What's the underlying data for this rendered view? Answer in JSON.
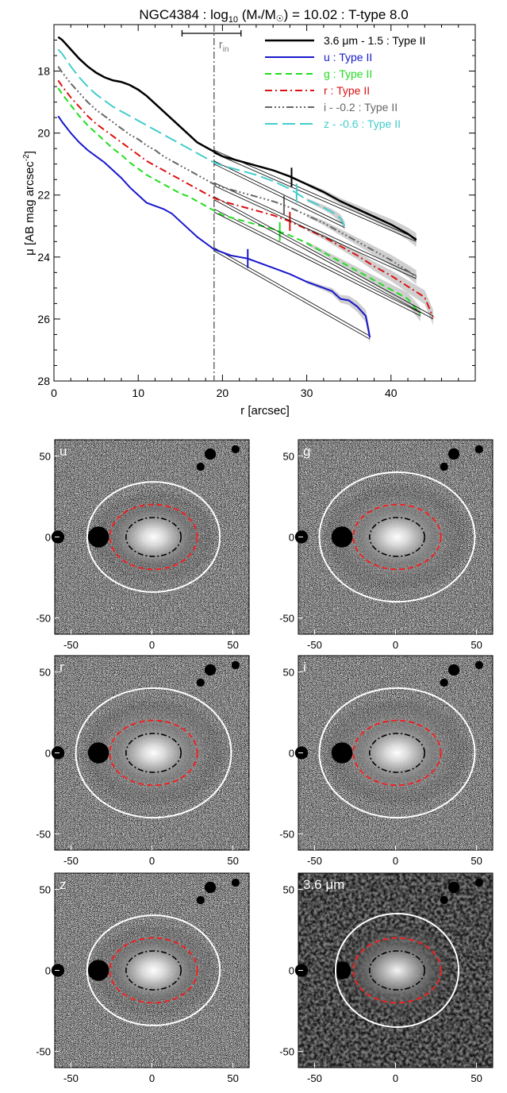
{
  "chart_data": [
    {
      "type": "line",
      "title": {
        "object": "NGC4384",
        "log_pre": "log",
        "log_sub": "10",
        "mass_open": " (M",
        "mass_star": "*",
        "mass_mid": "/M",
        "mass_sun": "☉",
        "mass_close": ")",
        "value": " = 10.02 : T-type 8.0"
      },
      "xlabel": "r [arcsec]",
      "ylabel": {
        "pre": "μ [AB mag arcsec",
        "sup": "-2",
        "post": "]"
      },
      "xlim": [
        0,
        50
      ],
      "ylim": [
        28,
        16.5
      ],
      "y_inverted": true,
      "xticks": [
        0,
        10,
        20,
        30,
        40
      ],
      "yticks": [
        18,
        20,
        22,
        24,
        26,
        28
      ],
      "r_in_marker": {
        "x": 19.0,
        "label": "r",
        "label_sub": "in",
        "error_range": [
          15.2,
          22.2
        ]
      },
      "legend_position": "top-right",
      "series": [
        {
          "name": "3.6 μm - 1.5 : Type II",
          "color": "#000000",
          "dash": "solid",
          "width": 2.5,
          "x": [
            0.5,
            1,
            2,
            3,
            4,
            5,
            6,
            7,
            8,
            9,
            10,
            11,
            12,
            13,
            14,
            15,
            16,
            17,
            18,
            19,
            20,
            22,
            24,
            26,
            28,
            30,
            32,
            34,
            36,
            38,
            40,
            42,
            43
          ],
          "y": [
            16.9,
            17.0,
            17.3,
            17.6,
            17.85,
            18.05,
            18.2,
            18.3,
            18.35,
            18.45,
            18.6,
            18.8,
            19.05,
            19.3,
            19.55,
            19.8,
            20.05,
            20.3,
            20.45,
            20.6,
            20.75,
            20.9,
            21.05,
            21.2,
            21.4,
            21.65,
            21.9,
            22.2,
            22.45,
            22.7,
            22.95,
            23.25,
            23.45
          ],
          "fit_breaks": [
            28.2
          ],
          "break_mark_x": 28.2
        },
        {
          "name": "u : Type II",
          "color": "#1818cc",
          "dash": "solid",
          "width": 2,
          "x": [
            0.5,
            1,
            2,
            3,
            4,
            5,
            6,
            7,
            8,
            9,
            10,
            11,
            12,
            13,
            14,
            15,
            16,
            17,
            18,
            19,
            20,
            21,
            22,
            23,
            24,
            26,
            28,
            30,
            32,
            33,
            34,
            35,
            36,
            37,
            37.5
          ],
          "y": [
            19.45,
            19.65,
            20.0,
            20.3,
            20.55,
            20.75,
            20.95,
            21.2,
            21.45,
            21.75,
            22.0,
            22.25,
            22.35,
            22.45,
            22.6,
            22.85,
            23.1,
            23.35,
            23.55,
            23.75,
            23.85,
            23.95,
            24.0,
            24.05,
            24.15,
            24.35,
            24.55,
            24.8,
            25.0,
            25.1,
            25.35,
            25.4,
            25.6,
            25.9,
            26.6
          ],
          "break_mark_x": 23.0
        },
        {
          "name": "g : Type II",
          "color": "#22dd22",
          "dash": "dash",
          "width": 2,
          "x": [
            0.5,
            1,
            2,
            3,
            4,
            5,
            6,
            7,
            8,
            9,
            10,
            11,
            12,
            13,
            14,
            15,
            16,
            17,
            18,
            19,
            20,
            22,
            24,
            26,
            28,
            30,
            32,
            34,
            36,
            38,
            40,
            42,
            43.5
          ],
          "y": [
            18.55,
            18.75,
            19.1,
            19.45,
            19.75,
            20.0,
            20.25,
            20.5,
            20.7,
            20.95,
            21.15,
            21.35,
            21.5,
            21.65,
            21.8,
            21.95,
            22.05,
            22.2,
            22.35,
            22.5,
            22.65,
            22.8,
            22.95,
            23.1,
            23.3,
            23.55,
            23.85,
            24.15,
            24.45,
            24.75,
            25.05,
            25.35,
            25.85
          ],
          "break_mark_x": 26.8
        },
        {
          "name": "r : Type II",
          "color": "#dd1111",
          "dash": "dashdot",
          "width": 2,
          "x": [
            0.5,
            1,
            2,
            3,
            4,
            5,
            6,
            7,
            8,
            9,
            10,
            11,
            12,
            13,
            14,
            15,
            16,
            17,
            18,
            19,
            20,
            22,
            24,
            26,
            28,
            30,
            32,
            34,
            36,
            38,
            40,
            42,
            44,
            45
          ],
          "y": [
            18.3,
            18.5,
            18.85,
            19.15,
            19.45,
            19.7,
            19.9,
            20.1,
            20.3,
            20.5,
            20.7,
            20.9,
            21.05,
            21.2,
            21.35,
            21.5,
            21.65,
            21.8,
            21.95,
            22.1,
            22.2,
            22.35,
            22.5,
            22.65,
            22.85,
            23.1,
            23.35,
            23.65,
            23.95,
            24.3,
            24.6,
            24.95,
            25.3,
            25.95
          ],
          "break_mark_x": 28.0
        },
        {
          "name": "i - -0.2 : Type II",
          "color": "#666666",
          "dash": "dashdotdotdot",
          "width": 2,
          "x": [
            0.5,
            1,
            2,
            3,
            4,
            5,
            6,
            7,
            8,
            9,
            10,
            11,
            12,
            13,
            14,
            15,
            16,
            17,
            18,
            19,
            20,
            22,
            24,
            26,
            28,
            30,
            32,
            34,
            36,
            38,
            40,
            42,
            43
          ],
          "y": [
            17.85,
            18.05,
            18.4,
            18.7,
            19.0,
            19.25,
            19.45,
            19.65,
            19.85,
            20.05,
            20.2,
            20.4,
            20.55,
            20.75,
            20.9,
            21.05,
            21.2,
            21.35,
            21.5,
            21.65,
            21.75,
            21.9,
            22.05,
            22.2,
            22.4,
            22.65,
            22.9,
            23.2,
            23.5,
            23.8,
            24.1,
            24.45,
            24.65
          ],
          "break_mark_x": 27.3
        },
        {
          "name": "z - -0.6 : Type II",
          "color": "#44cccc",
          "dash": "longdash",
          "width": 2,
          "x": [
            0.5,
            1,
            2,
            3,
            4,
            5,
            6,
            7,
            8,
            9,
            10,
            11,
            12,
            13,
            14,
            15,
            16,
            17,
            18,
            19,
            20,
            22,
            24,
            26,
            28,
            30,
            32,
            33,
            34,
            34.5
          ],
          "y": [
            17.3,
            17.45,
            17.85,
            18.2,
            18.5,
            18.75,
            18.95,
            19.15,
            19.3,
            19.45,
            19.6,
            19.75,
            19.9,
            20.05,
            20.2,
            20.35,
            20.5,
            20.65,
            20.8,
            20.95,
            21.05,
            21.2,
            21.35,
            21.55,
            21.8,
            22.15,
            22.4,
            22.55,
            22.75,
            23.0
          ],
          "break_mark_x": 28.8
        }
      ]
    },
    {
      "type": "image_grid",
      "panels": [
        {
          "label": "u"
        },
        {
          "label": "g"
        },
        {
          "label": "r"
        },
        {
          "label": "i"
        },
        {
          "label": "z"
        },
        {
          "label": "3.6 μm"
        }
      ],
      "xticks": [
        -50,
        0,
        50
      ],
      "yticks": [
        50,
        0,
        -50
      ],
      "xlim": [
        -60,
        60
      ],
      "ylim": [
        -60,
        60
      ],
      "ellipse_colors": {
        "outer": "#ffffff",
        "break": "#ee2222",
        "inner": "#000000"
      }
    }
  ]
}
